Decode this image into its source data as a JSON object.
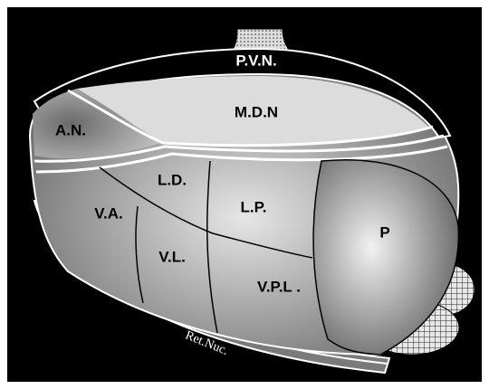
{
  "nodes": [
    {
      "label": "P.V.N."
    },
    {
      "label": "M.D.N"
    },
    {
      "label": "A.N."
    },
    {
      "label": "L.D."
    },
    {
      "label": "V.A."
    },
    {
      "label": "L.P."
    },
    {
      "label": "P"
    },
    {
      "label": "V.L."
    },
    {
      "label": "V.P.L ."
    },
    {
      "label": "Ret.Nuc."
    }
  ]
}
